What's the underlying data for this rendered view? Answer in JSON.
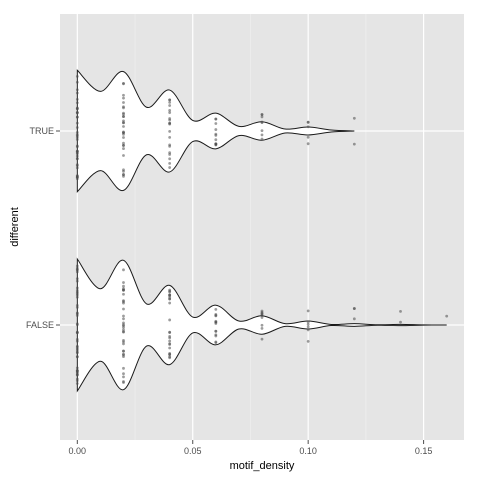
{
  "chart_data": {
    "type": "violin",
    "xlabel": "motif_density",
    "ylabel": "different",
    "xlim": [
      -0.0075,
      0.1675
    ],
    "x_ticks": [
      0.0,
      0.05,
      0.1,
      0.15
    ],
    "x_tick_labels": [
      "0.00",
      "0.05",
      "0.10",
      "0.15"
    ],
    "categories": [
      "FALSE",
      "TRUE"
    ],
    "grid": true,
    "background": "#e5e5e5",
    "gridline_color": "#ffffff",
    "outline_color": "#1a1a1a",
    "point_color": "#4d4d4d",
    "groups": [
      {
        "name": "TRUE",
        "density": [
          [
            0.0,
            0.92
          ],
          [
            0.01,
            0.6
          ],
          [
            0.02,
            0.9
          ],
          [
            0.03,
            0.36
          ],
          [
            0.04,
            0.62
          ],
          [
            0.05,
            0.16
          ],
          [
            0.06,
            0.27
          ],
          [
            0.07,
            0.07
          ],
          [
            0.08,
            0.14
          ],
          [
            0.09,
            0.03
          ],
          [
            0.1,
            0.06
          ],
          [
            0.11,
            0.015
          ],
          [
            0.12,
            0.0
          ]
        ],
        "points": [
          {
            "x": 0.0,
            "n": 40
          },
          {
            "x": 0.02,
            "n": 30
          },
          {
            "x": 0.04,
            "n": 20
          },
          {
            "x": 0.06,
            "n": 12
          },
          {
            "x": 0.08,
            "n": 8
          },
          {
            "x": 0.1,
            "n": 5
          },
          {
            "x": 0.12,
            "n": 2
          }
        ]
      },
      {
        "name": "FALSE",
        "density": [
          [
            0.0,
            1.0
          ],
          [
            0.01,
            0.55
          ],
          [
            0.02,
            0.98
          ],
          [
            0.03,
            0.32
          ],
          [
            0.04,
            0.6
          ],
          [
            0.05,
            0.12
          ],
          [
            0.06,
            0.3
          ],
          [
            0.07,
            0.06
          ],
          [
            0.08,
            0.14
          ],
          [
            0.09,
            0.02
          ],
          [
            0.1,
            0.06
          ],
          [
            0.11,
            0.008
          ],
          [
            0.12,
            0.02
          ],
          [
            0.13,
            0.003
          ],
          [
            0.14,
            0.01
          ],
          [
            0.15,
            0.002
          ],
          [
            0.16,
            0.0
          ]
        ],
        "points": [
          {
            "x": 0.0,
            "n": 45
          },
          {
            "x": 0.02,
            "n": 34
          },
          {
            "x": 0.04,
            "n": 24
          },
          {
            "x": 0.06,
            "n": 14
          },
          {
            "x": 0.08,
            "n": 9
          },
          {
            "x": 0.1,
            "n": 6
          },
          {
            "x": 0.12,
            "n": 3
          },
          {
            "x": 0.14,
            "n": 2
          },
          {
            "x": 0.16,
            "n": 1
          }
        ]
      }
    ]
  }
}
